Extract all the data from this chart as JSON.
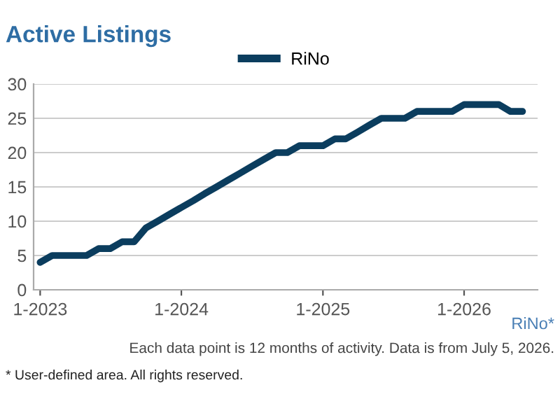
{
  "chart_data": {
    "type": "line",
    "title": "Active Listings",
    "x": [
      "2023-01",
      "2023-02",
      "2023-03",
      "2023-04",
      "2023-05",
      "2023-06",
      "2023-07",
      "2023-08",
      "2023-09",
      "2023-10",
      "2023-11",
      "2023-12",
      "2024-01",
      "2024-02",
      "2024-03",
      "2024-04",
      "2024-05",
      "2024-06",
      "2024-07",
      "2024-08",
      "2024-09",
      "2024-10",
      "2024-11",
      "2024-12",
      "2025-01",
      "2025-02",
      "2025-03",
      "2025-04",
      "2025-05",
      "2025-06",
      "2025-07",
      "2025-08",
      "2025-09",
      "2025-10",
      "2025-11",
      "2025-12",
      "2026-01",
      "2026-02",
      "2026-03",
      "2026-04",
      "2026-05",
      "2026-06"
    ],
    "series": [
      {
        "name": "RiNo",
        "color": "#0b3d5e",
        "values": [
          4,
          5,
          5,
          5,
          5,
          6,
          6,
          7,
          7,
          9,
          10,
          11,
          12,
          13,
          14,
          15,
          16,
          17,
          18,
          19,
          20,
          20,
          21,
          21,
          21,
          22,
          22,
          23,
          24,
          25,
          25,
          25,
          26,
          26,
          26,
          26,
          27,
          27,
          27,
          27,
          26,
          26
        ]
      }
    ],
    "xlim": [
      "2022-12-15",
      "2026-07-10"
    ],
    "xticks": [
      {
        "value": "2023-01",
        "label": "1-2023"
      },
      {
        "value": "2024-01",
        "label": "1-2024"
      },
      {
        "value": "2025-01",
        "label": "1-2025"
      },
      {
        "value": "2026-01",
        "label": "1-2026"
      }
    ],
    "ylim": [
      0,
      30
    ],
    "yticks": [
      0,
      5,
      10,
      15,
      20,
      25,
      30
    ],
    "grid": "y",
    "legend": "top",
    "marker": "none",
    "line_style": "solid",
    "annotations": [
      "RiNo*",
      "Each data point is 12 months of activity. Data is from July 5, 2026.",
      "* User-defined area. All rights reserved."
    ]
  }
}
